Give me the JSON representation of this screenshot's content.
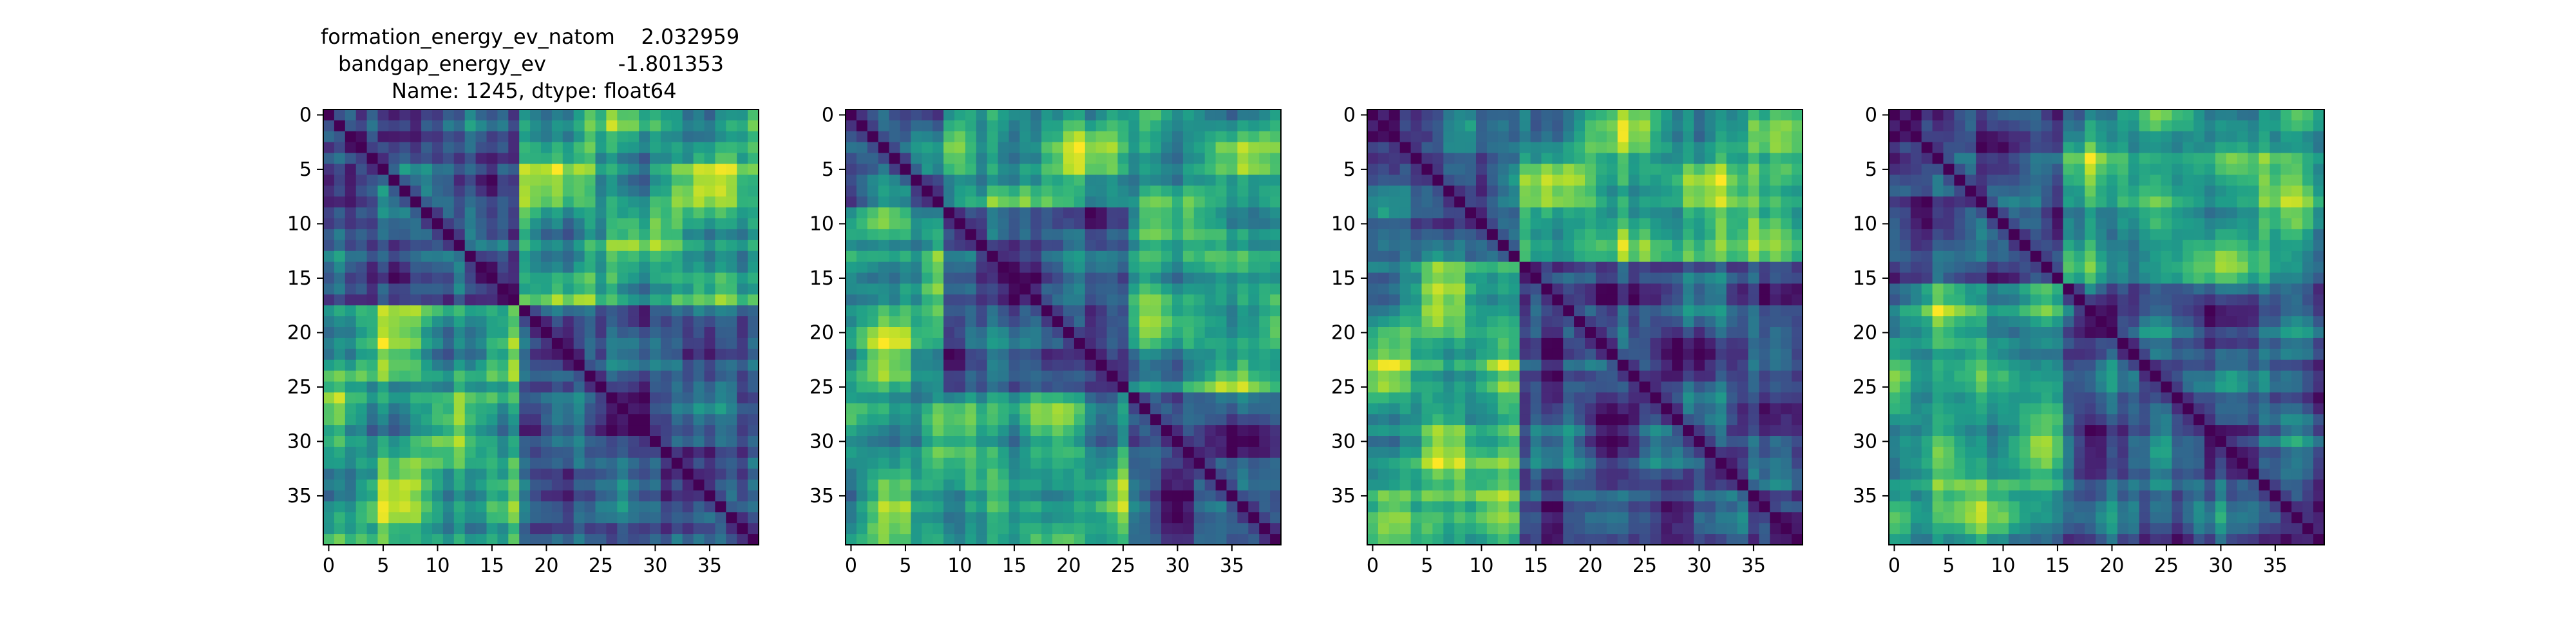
{
  "figure": {
    "title_lines": [
      "formation_energy_ev_natom    2.032959",
      "bandgap_energy_ev           -1.801353",
      "Name: 1245, dtype: float64"
    ]
  },
  "chart_data": [
    {
      "type": "heatmap",
      "title": "",
      "n": 40,
      "blocks": [
        [
          0,
          18
        ],
        [
          18,
          40
        ]
      ],
      "colormap": "viridis",
      "x_ticks": [
        0,
        5,
        10,
        15,
        20,
        25,
        30,
        35
      ],
      "y_ticks": [
        0,
        5,
        10,
        15,
        20,
        25,
        30,
        35
      ]
    },
    {
      "type": "heatmap",
      "title": "",
      "n": 40,
      "blocks": [
        [
          0,
          9
        ],
        [
          9,
          26
        ],
        [
          26,
          40
        ]
      ],
      "colormap": "viridis",
      "x_ticks": [
        0,
        5,
        10,
        15,
        20,
        25,
        30,
        35
      ],
      "y_ticks": [
        0,
        5,
        10,
        15,
        20,
        25,
        30,
        35
      ]
    },
    {
      "type": "heatmap",
      "title": "",
      "n": 40,
      "blocks": [
        [
          0,
          14
        ],
        [
          14,
          40
        ]
      ],
      "colormap": "viridis",
      "x_ticks": [
        0,
        5,
        10,
        15,
        20,
        25,
        30,
        35
      ],
      "y_ticks": [
        0,
        5,
        10,
        15,
        20,
        25,
        30,
        35
      ]
    },
    {
      "type": "heatmap",
      "title": "",
      "n": 40,
      "blocks": [
        [
          0,
          16
        ],
        [
          16,
          40
        ]
      ],
      "colormap": "viridis",
      "x_ticks": [
        0,
        5,
        10,
        15,
        20,
        25,
        30,
        35
      ],
      "y_ticks": [
        0,
        5,
        10,
        15,
        20,
        25,
        30,
        35
      ]
    }
  ]
}
